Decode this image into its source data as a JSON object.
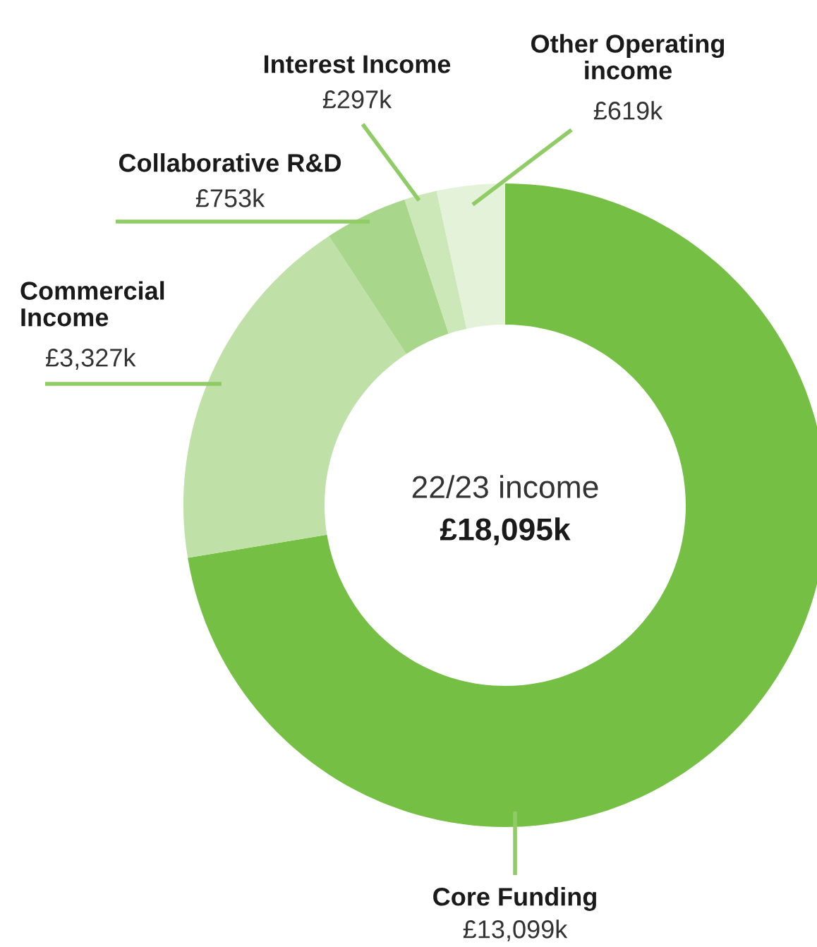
{
  "chart_data": {
    "type": "donut",
    "categories": [
      "Core Funding",
      "Commercial\nIncome",
      "Collaborative R&D",
      "Interest Income",
      "Other Operating\nincome"
    ],
    "values": [
      13099,
      3327,
      753,
      297,
      619
    ],
    "value_labels": [
      "£13,099k",
      "£3,327k",
      "£753k",
      "£297k",
      "£619k"
    ],
    "colors": [
      "#74bf44",
      "#bfe0a6",
      "#a8d68a",
      "#cde8b8",
      "#e3f2d8"
    ],
    "annotations": [
      "22/23 income",
      "£18,095k"
    ],
    "legend": false
  }
}
